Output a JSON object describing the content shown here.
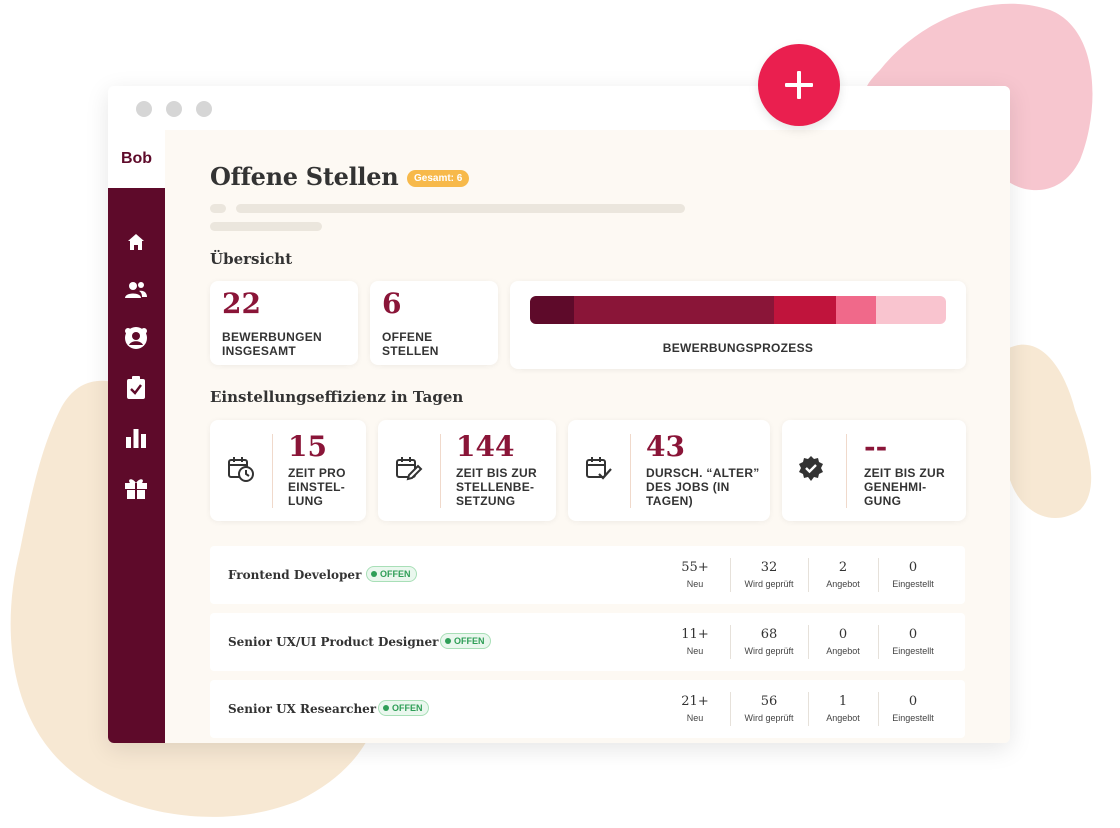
{
  "colors": {
    "brand": "#5e0a2a",
    "accent": "#8a1538",
    "plus_button": "#ea1f4f",
    "total_badge": "#f7b94a",
    "status_open": "#2f9e57"
  },
  "sidebar": {
    "logo": "Bob",
    "items": [
      {
        "icon": "home-icon"
      },
      {
        "icon": "users-icon"
      },
      {
        "icon": "candidate-icon"
      },
      {
        "icon": "clipboard-check-icon"
      },
      {
        "icon": "bar-chart-icon"
      },
      {
        "icon": "gift-icon"
      }
    ]
  },
  "header": {
    "title": "Offene Stellen",
    "total_badge": "Gesamt: 6"
  },
  "overview": {
    "heading": "Übersicht",
    "applications": {
      "value": "22",
      "label": "BEWERBUNGEN INSGESAMT"
    },
    "open_positions": {
      "value": "6",
      "label": "OFFENE STELLEN"
    },
    "process": {
      "label": "BEWERBUNGSPROZESS",
      "segments": [
        {
          "color": "#5e0a2a",
          "share": 0.105
        },
        {
          "color": "#8a1538",
          "share": 0.48
        },
        {
          "color": "#c0143c",
          "share": 0.15
        },
        {
          "color": "#f0698a",
          "share": 0.095
        },
        {
          "color": "#f9c4cf",
          "share": 0.17
        }
      ]
    }
  },
  "efficiency": {
    "heading": "Einstellungseffizienz in Tagen",
    "cards": [
      {
        "icon": "calendar-clock-icon",
        "value": "15",
        "label": "ZEIT PRO EINSTEL- LUNG"
      },
      {
        "icon": "calendar-edit-icon",
        "value": "144",
        "label": "ZEIT BIS ZUR STELLENBE- SETZUNG"
      },
      {
        "icon": "calendar-check-icon",
        "value": "43",
        "label": "DURSCH. “ALTER” DES JOBS (IN TAGEN)"
      },
      {
        "icon": "verified-badge-icon",
        "value": "--",
        "label": "ZEIT BIS ZUR GENEHMI- GUNG"
      }
    ]
  },
  "jobs": [
    {
      "title": "Frontend Developer",
      "status": "OFFEN",
      "stats": [
        {
          "value": "55+",
          "label": "Neu"
        },
        {
          "value": "32",
          "label": "Wird geprüft"
        },
        {
          "value": "2",
          "label": "Angebot"
        },
        {
          "value": "0",
          "label": "Eingestellt"
        }
      ]
    },
    {
      "title": "Senior UX/UI Product Designer",
      "status": "OFFEN",
      "stats": [
        {
          "value": "11+",
          "label": "Neu"
        },
        {
          "value": "68",
          "label": "Wird geprüft"
        },
        {
          "value": "0",
          "label": "Angebot"
        },
        {
          "value": "0",
          "label": "Eingestellt"
        }
      ]
    },
    {
      "title": "Senior UX Researcher",
      "status": "OFFEN",
      "stats": [
        {
          "value": "21+",
          "label": "Neu"
        },
        {
          "value": "56",
          "label": "Wird geprüft"
        },
        {
          "value": "1",
          "label": "Angebot"
        },
        {
          "value": "0",
          "label": "Eingestellt"
        }
      ]
    }
  ]
}
